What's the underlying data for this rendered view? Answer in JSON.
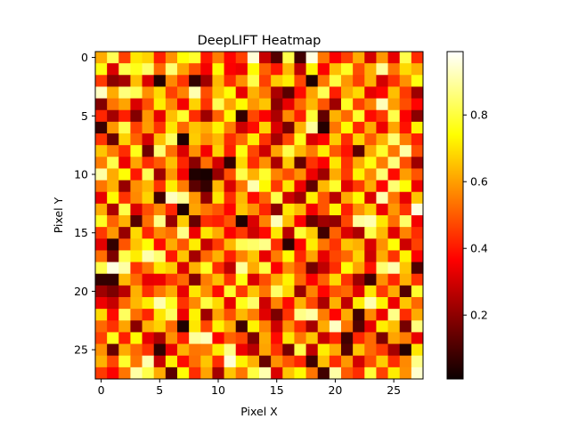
{
  "chart_data": {
    "type": "heatmap",
    "title": "DeepLIFT Heatmap",
    "xlabel": "Pixel X",
    "ylabel": "Pixel Y",
    "rows": 28,
    "cols": 28,
    "colormap": "hot",
    "vmin": 0.0,
    "vmax": 1.0,
    "x_ticks": [
      0,
      5,
      10,
      15,
      20,
      25
    ],
    "y_ticks": [
      0,
      5,
      10,
      15,
      20,
      25
    ],
    "colorbar_ticks": [
      0.2,
      0.4,
      0.6,
      0.8
    ],
    "values": [
      [
        0.62,
        0.83,
        0.46,
        0.71,
        0.68,
        0.41,
        0.58,
        0.75,
        0.79,
        0.4,
        0.55,
        0.37,
        0.46,
        0.96,
        0.28,
        0.11,
        0.82,
        0.08,
        0.97,
        0.54,
        0.36,
        0.46,
        0.62,
        0.3,
        0.59,
        0.33,
        0.82,
        0.43
      ],
      [
        0.76,
        0.31,
        0.82,
        0.77,
        0.85,
        0.52,
        0.86,
        0.61,
        0.48,
        0.35,
        0.74,
        0.36,
        0.34,
        0.74,
        0.51,
        0.4,
        0.64,
        0.27,
        0.73,
        0.36,
        0.65,
        0.78,
        0.48,
        0.63,
        0.9,
        0.54,
        0.69,
        0.63
      ],
      [
        0.45,
        0.19,
        0.23,
        0.65,
        0.31,
        0.04,
        0.57,
        0.44,
        0.06,
        0.22,
        0.64,
        0.43,
        0.58,
        0.82,
        0.46,
        0.67,
        0.72,
        0.47,
        0.03,
        0.54,
        0.81,
        0.59,
        0.46,
        0.63,
        0.3,
        0.44,
        0.58,
        0.76
      ],
      [
        0.94,
        0.62,
        0.87,
        0.83,
        0.58,
        0.69,
        0.46,
        0.56,
        0.92,
        0.48,
        0.66,
        0.75,
        0.33,
        0.63,
        0.54,
        0.24,
        0.12,
        0.38,
        0.61,
        0.83,
        0.41,
        0.62,
        0.69,
        0.33,
        0.37,
        0.65,
        0.45,
        0.22
      ],
      [
        0.18,
        0.54,
        0.61,
        0.31,
        0.48,
        0.72,
        0.57,
        0.35,
        0.68,
        0.44,
        0.83,
        0.61,
        0.74,
        0.59,
        0.66,
        0.19,
        0.33,
        0.52,
        0.64,
        0.49,
        0.22,
        0.78,
        0.46,
        0.56,
        0.93,
        0.6,
        0.48,
        0.37
      ],
      [
        0.42,
        0.23,
        0.41,
        0.18,
        0.59,
        0.33,
        0.65,
        0.79,
        0.43,
        0.22,
        0.51,
        0.74,
        0.06,
        0.47,
        0.36,
        0.24,
        0.57,
        0.41,
        0.8,
        0.13,
        0.63,
        0.52,
        0.79,
        0.38,
        0.45,
        0.82,
        0.36,
        0.19
      ],
      [
        0.07,
        0.59,
        0.82,
        0.46,
        0.6,
        0.44,
        0.71,
        0.52,
        0.66,
        0.62,
        0.73,
        0.55,
        0.29,
        0.38,
        0.68,
        0.31,
        0.16,
        0.63,
        0.9,
        0.04,
        0.54,
        0.74,
        0.42,
        0.62,
        0.34,
        0.61,
        0.39,
        0.73
      ],
      [
        0.44,
        0.14,
        0.68,
        0.51,
        0.3,
        0.65,
        0.84,
        0.03,
        0.67,
        0.58,
        0.64,
        0.43,
        0.52,
        0.72,
        0.44,
        0.23,
        0.47,
        0.77,
        0.31,
        0.37,
        0.67,
        0.43,
        0.68,
        0.5,
        0.63,
        0.86,
        0.55,
        0.41
      ],
      [
        0.66,
        0.55,
        0.43,
        0.77,
        0.15,
        0.86,
        0.53,
        0.31,
        0.58,
        0.35,
        0.68,
        0.41,
        0.76,
        0.47,
        0.29,
        0.61,
        0.82,
        0.64,
        0.55,
        0.72,
        0.5,
        0.39,
        0.12,
        0.62,
        0.79,
        0.54,
        0.91,
        0.48
      ],
      [
        0.55,
        0.82,
        0.34,
        0.61,
        0.43,
        0.5,
        0.65,
        0.42,
        0.19,
        0.53,
        0.3,
        0.06,
        0.69,
        0.43,
        0.58,
        0.24,
        0.67,
        0.13,
        0.44,
        0.36,
        0.71,
        0.44,
        0.62,
        0.76,
        0.55,
        0.87,
        0.48,
        0.22
      ],
      [
        0.91,
        0.62,
        0.75,
        0.4,
        0.83,
        0.22,
        0.59,
        0.35,
        0.03,
        0.02,
        0.21,
        0.48,
        0.82,
        0.63,
        0.79,
        0.56,
        0.48,
        0.58,
        0.34,
        0.22,
        0.62,
        0.45,
        0.73,
        0.57,
        0.86,
        0.38,
        0.6,
        0.49
      ],
      [
        0.54,
        0.63,
        0.21,
        0.58,
        0.64,
        0.44,
        0.72,
        0.55,
        0.12,
        0.06,
        0.64,
        0.31,
        0.54,
        0.92,
        0.74,
        0.45,
        0.71,
        0.34,
        0.13,
        0.64,
        0.79,
        0.32,
        0.45,
        0.62,
        0.37,
        0.86,
        0.75,
        0.34
      ],
      [
        0.33,
        0.74,
        0.44,
        0.57,
        0.68,
        0.08,
        0.94,
        0.89,
        0.59,
        0.2,
        0.71,
        0.43,
        0.64,
        0.38,
        0.51,
        0.82,
        0.29,
        0.22,
        0.72,
        0.49,
        0.26,
        0.62,
        0.74,
        0.31,
        0.92,
        0.54,
        0.33,
        0.66
      ],
      [
        0.62,
        0.24,
        0.82,
        0.31,
        0.48,
        0.57,
        0.42,
        0.03,
        0.61,
        0.54,
        0.49,
        0.37,
        0.66,
        0.58,
        0.42,
        0.19,
        0.71,
        0.64,
        0.35,
        0.49,
        0.73,
        0.41,
        0.58,
        0.67,
        0.34,
        0.59,
        0.44,
        0.97
      ],
      [
        0.78,
        0.51,
        0.63,
        0.11,
        0.53,
        0.88,
        0.21,
        0.67,
        0.14,
        0.43,
        0.41,
        0.49,
        0.03,
        0.31,
        0.56,
        0.93,
        0.65,
        0.36,
        0.14,
        0.22,
        0.2,
        0.47,
        0.9,
        0.92,
        0.71,
        0.53,
        0.85,
        0.35
      ],
      [
        0.45,
        0.59,
        0.21,
        0.69,
        0.42,
        0.57,
        0.53,
        0.88,
        0.34,
        0.71,
        0.62,
        0.36,
        0.45,
        0.29,
        0.38,
        0.71,
        0.26,
        0.8,
        0.67,
        0.08,
        0.51,
        0.31,
        0.24,
        0.82,
        0.64,
        0.32,
        0.56,
        0.43
      ],
      [
        0.32,
        0.06,
        0.49,
        0.66,
        0.75,
        0.38,
        0.62,
        0.49,
        0.72,
        0.28,
        0.45,
        0.64,
        0.83,
        0.85,
        0.88,
        0.43,
        0.05,
        0.37,
        0.72,
        0.54,
        0.44,
        0.66,
        0.63,
        0.31,
        0.58,
        0.75,
        0.29,
        0.46
      ],
      [
        0.53,
        0.17,
        0.82,
        0.72,
        0.92,
        0.86,
        0.4,
        0.66,
        0.23,
        0.52,
        0.63,
        0.41,
        0.56,
        0.66,
        0.33,
        0.55,
        0.74,
        0.42,
        0.61,
        0.33,
        0.47,
        0.52,
        0.68,
        0.29,
        0.62,
        0.44,
        0.73,
        0.36
      ],
      [
        0.82,
        0.97,
        0.91,
        0.44,
        0.54,
        0.71,
        0.67,
        0.31,
        0.63,
        0.78,
        0.43,
        0.27,
        0.9,
        0.62,
        0.81,
        0.36,
        0.57,
        0.48,
        0.16,
        0.27,
        0.43,
        0.75,
        0.61,
        0.39,
        0.86,
        0.92,
        0.66,
        0.1
      ],
      [
        0.06,
        0.06,
        0.64,
        0.52,
        0.33,
        0.34,
        0.45,
        0.52,
        0.18,
        0.55,
        0.65,
        0.44,
        0.76,
        0.31,
        0.48,
        0.62,
        0.73,
        0.52,
        0.36,
        0.51,
        0.69,
        0.44,
        0.22,
        0.08,
        0.58,
        0.42,
        0.63,
        0.44
      ],
      [
        0.22,
        0.17,
        0.26,
        0.63,
        0.43,
        0.54,
        0.62,
        0.33,
        0.71,
        0.58,
        0.38,
        0.79,
        0.45,
        0.66,
        0.54,
        0.85,
        0.69,
        0.21,
        0.56,
        0.37,
        0.49,
        0.52,
        0.32,
        0.71,
        0.45,
        0.62,
        0.11,
        0.79
      ],
      [
        0.34,
        0.28,
        0.52,
        0.64,
        0.72,
        0.92,
        0.78,
        0.44,
        0.57,
        0.81,
        0.69,
        0.33,
        0.77,
        0.85,
        0.29,
        0.56,
        0.38,
        0.63,
        0.47,
        0.24,
        0.63,
        0.27,
        0.72,
        0.92,
        0.73,
        0.34,
        0.66,
        0.52
      ],
      [
        0.69,
        0.38,
        0.84,
        0.53,
        0.42,
        0.71,
        0.84,
        0.34,
        0.73,
        0.22,
        0.61,
        0.48,
        0.64,
        0.55,
        0.32,
        0.17,
        0.44,
        0.88,
        0.91,
        0.55,
        0.37,
        0.62,
        0.08,
        0.57,
        0.34,
        0.88,
        0.43,
        0.62
      ],
      [
        0.52,
        0.44,
        0.61,
        0.19,
        0.63,
        0.68,
        0.52,
        0.03,
        0.71,
        0.47,
        0.73,
        0.62,
        0.08,
        0.73,
        0.56,
        0.29,
        0.58,
        0.43,
        0.23,
        0.62,
        0.94,
        0.54,
        0.11,
        0.33,
        0.72,
        0.65,
        0.16,
        0.87
      ],
      [
        0.46,
        0.77,
        0.41,
        0.74,
        0.33,
        0.24,
        0.58,
        0.41,
        0.9,
        0.93,
        0.36,
        0.51,
        0.47,
        0.17,
        0.62,
        0.38,
        0.71,
        0.54,
        0.66,
        0.28,
        0.42,
        0.08,
        0.42,
        0.52,
        0.17,
        0.61,
        0.55,
        0.33
      ],
      [
        0.58,
        0.14,
        0.62,
        0.52,
        0.44,
        0.06,
        0.33,
        0.63,
        0.54,
        0.55,
        0.72,
        0.88,
        0.34,
        0.26,
        0.61,
        0.44,
        0.16,
        0.82,
        0.27,
        0.72,
        0.62,
        0.11,
        0.66,
        0.52,
        0.45,
        0.23,
        0.04,
        0.71
      ],
      [
        0.63,
        0.47,
        0.79,
        0.54,
        0.92,
        0.28,
        0.72,
        0.38,
        0.53,
        0.66,
        0.43,
        0.96,
        0.73,
        0.63,
        0.14,
        0.58,
        0.49,
        0.42,
        0.08,
        0.65,
        0.43,
        0.59,
        0.3,
        0.48,
        0.67,
        0.43,
        0.57,
        0.88
      ],
      [
        0.45,
        0.36,
        0.54,
        0.91,
        0.82,
        0.62,
        0.12,
        0.75,
        0.43,
        0.61,
        0.23,
        0.66,
        0.54,
        0.81,
        0.92,
        0.31,
        0.66,
        0.74,
        0.54,
        0.08,
        0.91,
        0.5,
        0.43,
        0.8,
        0.46,
        0.72,
        0.58,
        0.95
      ]
    ]
  }
}
